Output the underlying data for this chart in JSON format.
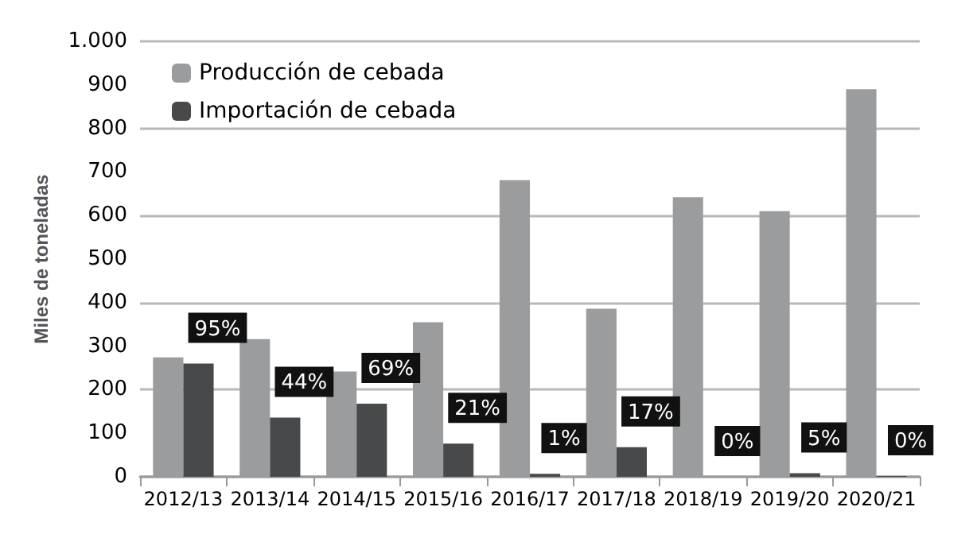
{
  "chart_data": {
    "type": "bar",
    "ylabel": "Miles de toneladas",
    "categories": [
      "2012/13",
      "2013/14",
      "2014/15",
      "2015/16",
      "2016/17",
      "2017/18",
      "2018/19",
      "2019/20",
      "2020/21"
    ],
    "series": [
      {
        "name": "Producción de cebada",
        "color": "#9a9c9e",
        "values": [
          274,
          316,
          242,
          355,
          681,
          386,
          642,
          610,
          890
        ]
      },
      {
        "name": "Importación de cebada",
        "color": "#47494b",
        "values": [
          260,
          136,
          168,
          76,
          7,
          68,
          0,
          8,
          2
        ]
      }
    ],
    "annotations": [
      {
        "text": "95%",
        "x": "2012/13",
        "y": 260
      },
      {
        "text": "44%",
        "x": "2013/14",
        "y": 136
      },
      {
        "text": "69%",
        "x": "2014/15",
        "y": 168
      },
      {
        "text": "21%",
        "x": "2015/16",
        "y": 76
      },
      {
        "text": "1%",
        "x": "2016/17",
        "y": 7
      },
      {
        "text": "17%",
        "x": "2017/18",
        "y": 68
      },
      {
        "text": "0%",
        "x": "2018/19",
        "y": 0
      },
      {
        "text": "5%",
        "x": "2019/20",
        "y": 8
      },
      {
        "text": "0%",
        "x": "2020/21",
        "y": 2
      }
    ],
    "ylim": [
      0,
      1000
    ],
    "yticks": [
      0,
      100,
      200,
      300,
      400,
      500,
      600,
      700,
      800,
      900,
      {
        "value": 1000,
        "label": "1.000"
      }
    ],
    "grid": "y",
    "legend": "top left"
  }
}
